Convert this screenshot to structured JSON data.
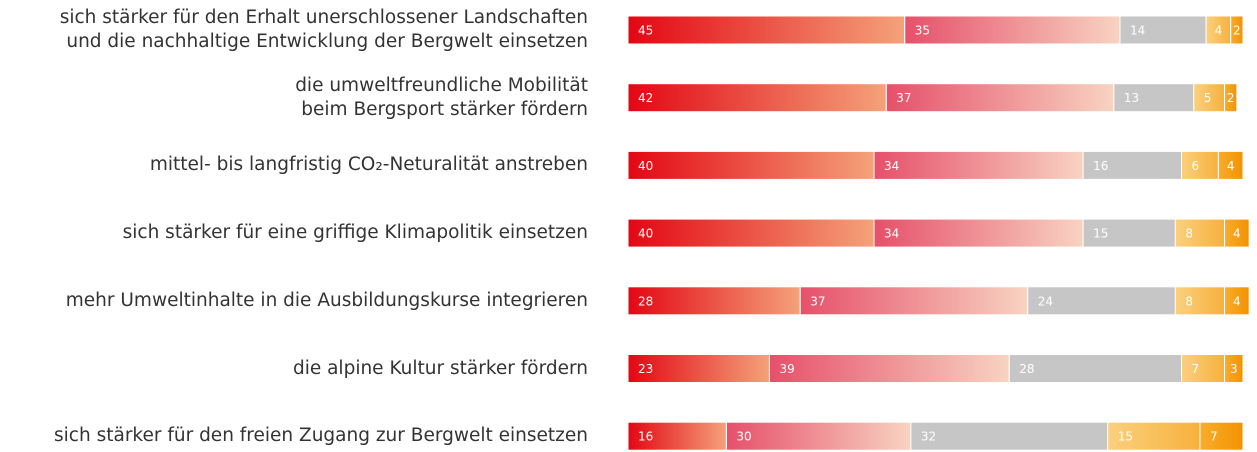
{
  "chart_data": {
    "type": "stacked-bar",
    "categories": [
      "sich stärker für den Erhalt unerschlossener Landschaften\nund die nachhaltige Entwicklung der Bergwelt einsetzen",
      "die umweltfreundliche Mobilität\nbeim Bergsport stärker fördern",
      "mittel- bis langfristig CO₂-Neturalität anstreben",
      "sich stärker für eine griffige Klimapolitik einsetzen",
      "mehr Umweltinhalte in die Ausbildungskurse integrieren",
      "die alpine Kultur stärker fördern",
      "sich stärker für den freien Zugang zur Bergwelt einsetzen"
    ],
    "series": [
      {
        "color": "#e30613",
        "color2": "#f4a27a",
        "values": [
          45,
          42,
          40,
          40,
          28,
          23,
          16
        ]
      },
      {
        "color": "#e6506a",
        "color2": "#f8d3c2",
        "values": [
          35,
          37,
          34,
          34,
          37,
          39,
          30
        ]
      },
      {
        "color": "#c6c6c6",
        "color2": "#c6c6c6",
        "values": [
          14,
          13,
          16,
          15,
          24,
          28,
          32
        ]
      },
      {
        "color": "#fbd07f",
        "color2": "#f6b13c",
        "values": [
          4,
          5,
          6,
          8,
          8,
          7,
          15
        ]
      },
      {
        "color": "#f8ad2c",
        "color2": "#f39200",
        "values": [
          2,
          2,
          4,
          4,
          4,
          3,
          7
        ]
      }
    ]
  }
}
